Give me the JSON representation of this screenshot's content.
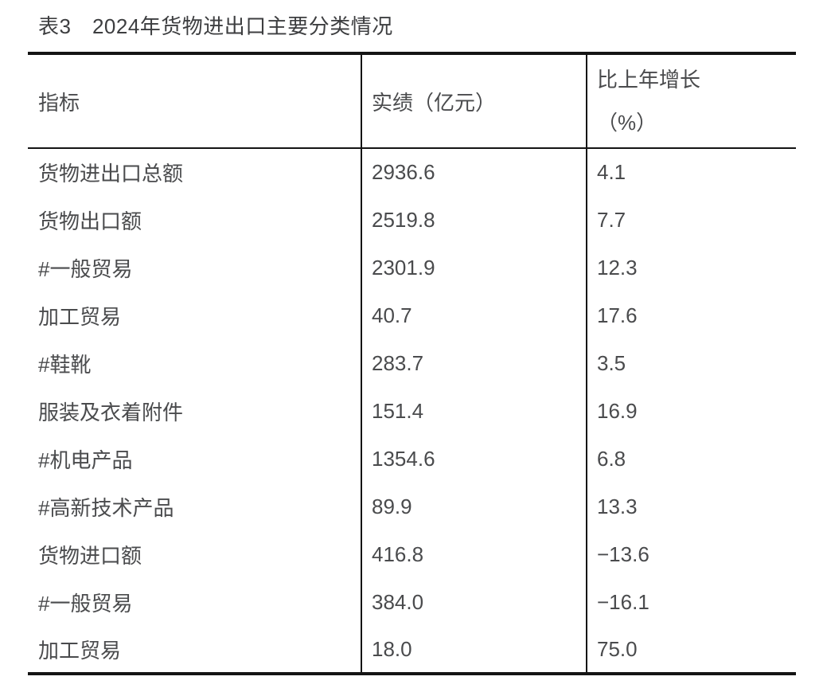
{
  "page": {
    "background": "#ffffff",
    "text_color": "#4a4b4d",
    "title_color": "#3d3e40",
    "border_color": "#141414"
  },
  "title": "表3　2024年货物进出口主要分类情况",
  "table": {
    "columns": {
      "indicator": "指标",
      "value": "实绩（亿元）",
      "growth_line1": "比上年增长",
      "growth_line2": "（%）"
    },
    "rows": [
      {
        "indicator": "货物进出口总额",
        "value": "2936.6",
        "growth": "4.1"
      },
      {
        "indicator": "货物出口额",
        "value": "2519.8",
        "growth": "7.7"
      },
      {
        "indicator": "#一般贸易",
        "value": "2301.9",
        "growth": "12.3"
      },
      {
        "indicator": "加工贸易",
        "value": "40.7",
        "growth": "17.6"
      },
      {
        "indicator": "#鞋靴",
        "value": "283.7",
        "growth": "3.5"
      },
      {
        "indicator": "服装及衣着附件",
        "value": "151.4",
        "growth": "16.9"
      },
      {
        "indicator": "#机电产品",
        "value": "1354.6",
        "growth": "6.8"
      },
      {
        "indicator": "#高新技术产品",
        "value": "89.9",
        "growth": "13.3"
      },
      {
        "indicator": "货物进口额",
        "value": "416.8",
        "growth": "−13.6"
      },
      {
        "indicator": "#一般贸易",
        "value": "384.0",
        "growth": "−16.1"
      },
      {
        "indicator": "加工贸易",
        "value": "18.0",
        "growth": "75.0"
      }
    ]
  }
}
